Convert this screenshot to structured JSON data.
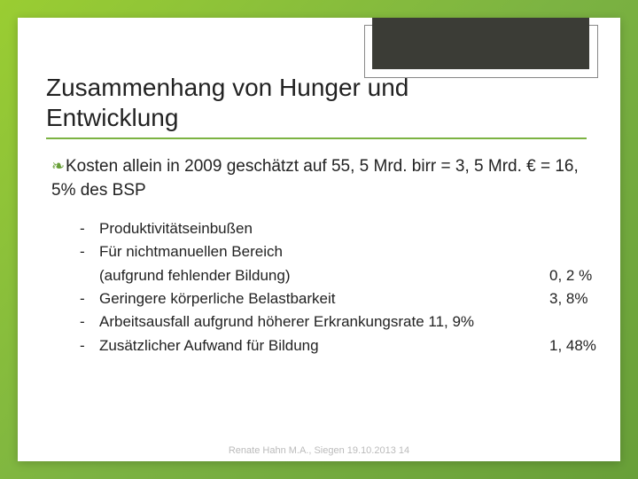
{
  "title_line1": "Zusammenhang von Hunger und",
  "title_line2": "Entwicklung",
  "main_text": "Kosten allein in 2009 geschätzt auf 55, 5 Mrd. birr = 3, 5 Mrd. € = 16, 5% des BSP",
  "subs": [
    {
      "text": "Produktivitätseinbußen",
      "val": ""
    },
    {
      "text": "Für nichtmanuellen Bereich\n(aufgrund fehlender Bildung)",
      "val": "0, 2 %"
    },
    {
      "text": "Geringere körperliche Belastbarkeit",
      "val": "3, 8%"
    },
    {
      "text": "Arbeitsausfall aufgrund höherer Erkrankungsrate  11, 9%",
      "val": ""
    },
    {
      "text": "Zusätzlicher Aufwand für Bildung",
      "val": "1, 48%"
    }
  ],
  "footer": "Renate Hahn M.A., Siegen 19.10.2013        14",
  "colors": {
    "accent": "#7cb342",
    "corner": "#3b3c36",
    "bg_grad_start": "#9acd32",
    "bg_grad_end": "#689f38"
  }
}
